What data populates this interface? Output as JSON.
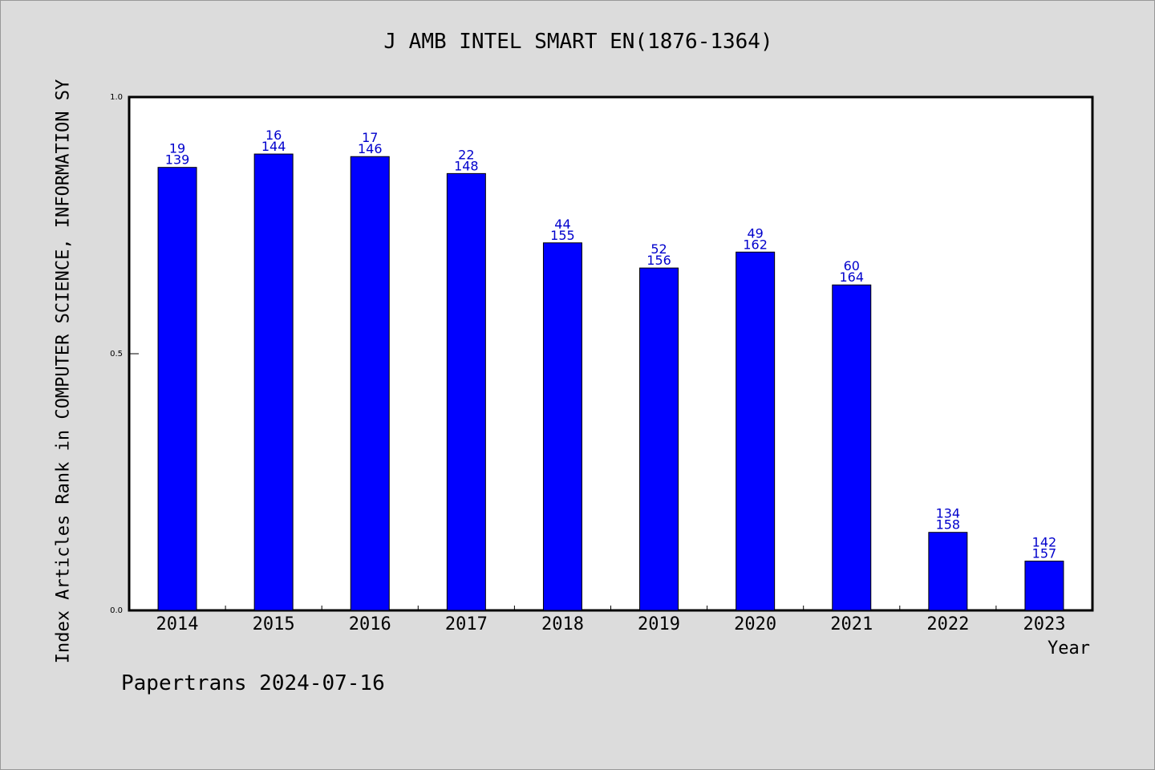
{
  "chart_data": {
    "type": "bar",
    "title": "J AMB INTEL SMART EN(1876-1364)",
    "xlabel": "Year",
    "ylabel": "Index Articles Rank in COMPUTER SCIENCE, INFORMATION SY",
    "categories": [
      "2014",
      "2015",
      "2016",
      "2017",
      "2018",
      "2019",
      "2020",
      "2021",
      "2022",
      "2023"
    ],
    "values": [
      0.863,
      0.889,
      0.884,
      0.851,
      0.716,
      0.667,
      0.698,
      0.634,
      0.152,
      0.096
    ],
    "labels_top": [
      "19",
      "16",
      "17",
      "22",
      "44",
      "52",
      "49",
      "60",
      "134",
      "142"
    ],
    "labels_bottom": [
      "139",
      "144",
      "146",
      "148",
      "155",
      "156",
      "162",
      "164",
      "158",
      "157"
    ],
    "ylim": [
      0,
      1
    ],
    "yticks": [
      0.0,
      0.5,
      1.0
    ],
    "ytick_labels": [
      "0.0",
      "0.5",
      "1.0"
    ],
    "bar_color": "#0000ff",
    "label_color": "#0000cc",
    "grid": false
  },
  "footer": {
    "note": "Papertrans 2024-07-16"
  }
}
